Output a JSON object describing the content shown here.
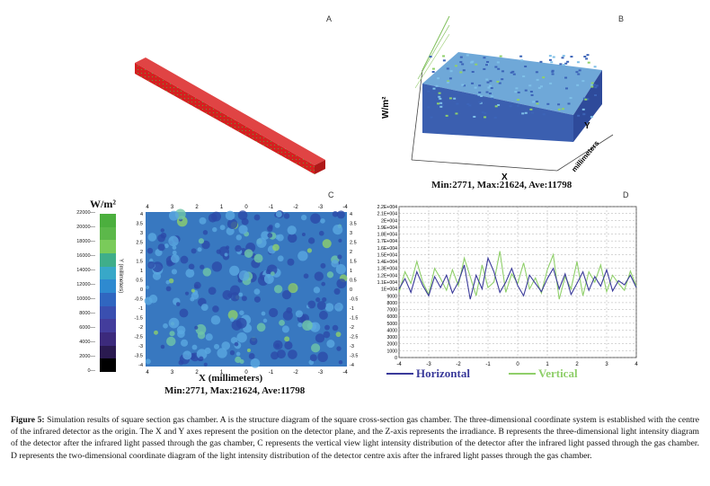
{
  "panels": {
    "A": {
      "letter": "A"
    },
    "B": {
      "letter": "B",
      "zlabel": "W/m²",
      "ylabel": "Y",
      "ylabel2": "millimeters",
      "xlabel": "X",
      "stats": "Min:2771, Max:21624, Ave:11798"
    },
    "C": {
      "letter": "C",
      "unit": "W/m²",
      "ylabel": "Y (millimeters)",
      "xlabel": "X (millimeters)",
      "stats": "Min:2771, Max:21624, Ave:11798",
      "colorbar_ticks": [
        "22000",
        "20000",
        "18000",
        "16000",
        "14000",
        "12000",
        "10000",
        "8000",
        "6000",
        "4000",
        "2000",
        "0"
      ],
      "x_ticks_top": [
        "4",
        "3",
        "2",
        "1",
        "0",
        "-1",
        "-2",
        "-3",
        "-4"
      ],
      "x_ticks_bottom": [
        "4",
        "3",
        "2",
        "1",
        "0",
        "-1",
        "-2",
        "-3",
        "-4"
      ],
      "y_ticks_left": [
        "4",
        "3.5",
        "3",
        "2.5",
        "2",
        "1.5",
        "1",
        "0.5",
        "0",
        "-0.5",
        "-1",
        "-1.5",
        "-2",
        "-2.5",
        "-3",
        "-3.5",
        "-4"
      ],
      "y_ticks_right": [
        "4",
        "3.5",
        "3",
        "2.5",
        "2",
        "1.5",
        "1",
        "0.5",
        "0",
        "-0.5",
        "-1",
        "-1.5",
        "-2",
        "-2.5",
        "-3",
        "-3.5",
        "-4"
      ]
    },
    "D": {
      "letter": "D"
    }
  },
  "colors": {
    "box_red": "#d42020",
    "horizontal": "#3a3a9a",
    "vertical": "#8fcf6a"
  },
  "chart_data": {
    "type": "line",
    "x": [
      -4,
      -3.8,
      -3.6,
      -3.4,
      -3.2,
      -3,
      -2.8,
      -2.6,
      -2.4,
      -2.2,
      -2,
      -1.8,
      -1.6,
      -1.4,
      -1.2,
      -1,
      -0.8,
      -0.6,
      -0.4,
      -0.2,
      0,
      0.2,
      0.4,
      0.6,
      0.8,
      1,
      1.2,
      1.4,
      1.6,
      1.8,
      2,
      2.2,
      2.4,
      2.6,
      2.8,
      3,
      3.2,
      3.4,
      3.6,
      3.8,
      4
    ],
    "series": [
      {
        "name": "Horizontal",
        "values": [
          10000,
          11500,
          9500,
          12500,
          10500,
          9000,
          11800,
          10200,
          12000,
          9400,
          11000,
          13500,
          8500,
          12000,
          10000,
          14500,
          12500,
          9500,
          11000,
          13000,
          10500,
          9000,
          12000,
          10800,
          9600,
          11500,
          13000,
          10000,
          12200,
          9200,
          10800,
          12500,
          9800,
          11800,
          10400,
          12800,
          9700,
          11200,
          10600,
          12000,
          10200
        ]
      },
      {
        "name": "Vertical",
        "values": [
          9500,
          12500,
          10800,
          14000,
          11000,
          9200,
          13000,
          11500,
          9800,
          12800,
          10500,
          14500,
          11800,
          9000,
          13500,
          10200,
          11000,
          15500,
          9500,
          12200,
          10800,
          13800,
          10000,
          11600,
          9400,
          12800,
          15000,
          8500,
          11800,
          10000,
          14000,
          9000,
          12500,
          11000,
          13500,
          9600,
          12000,
          10800,
          9800,
          12600,
          10400
        ]
      }
    ],
    "y_ticks": [
      "2.2E+004",
      "2.1E+004",
      "2E+004",
      "1.9E+004",
      "1.8E+004",
      "1.7E+004",
      "1.6E+004",
      "1.5E+004",
      "1.4E+004",
      "1.3E+004",
      "1.2E+004",
      "1.1E+004",
      "1E+004",
      "9000",
      "8000",
      "7000",
      "6000",
      "5000",
      "4000",
      "3000",
      "2000",
      "1000",
      "0"
    ],
    "x_ticks": [
      "-4",
      "-3",
      "-2",
      "-1",
      "0",
      "1",
      "2",
      "3",
      "4"
    ],
    "ylim": [
      0,
      22000
    ],
    "xlim": [
      -4,
      4
    ],
    "grid": true,
    "legend_placement": "bottom"
  },
  "caption": {
    "label": "Figure 5:",
    "text": " Simulation results of square section gas chamber. A is the structure diagram of the square cross-section gas chamber. The three-dimensional coordinate system is established with the centre of the infrared detector as the origin. The X and Y axes represent the position on the detector plane, and the Z-axis represents the irradiance. B represents the three-dimensional light intensity diagram of the detector after the infrared light passed through the gas chamber, C represents the vertical view light intensity distribution of the detector after the infrared light passed through the gas chamber. D represents the two-dimensional coordinate diagram of the light intensity distribution of the detector centre axis after the infrared light passes through the gas chamber."
  }
}
